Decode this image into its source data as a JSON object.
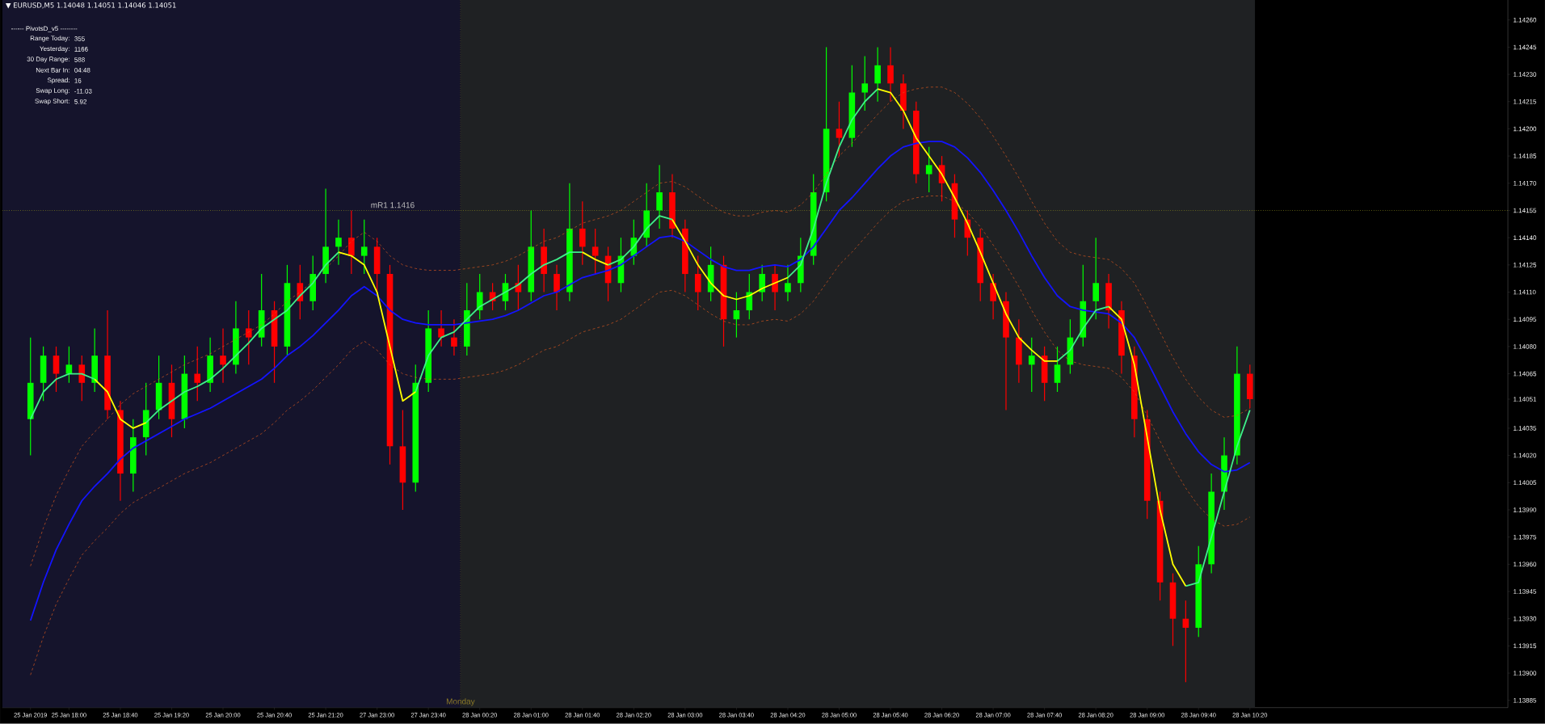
{
  "chart_data": {
    "type": "candlestick",
    "title": "▼ EURUSD,M5  1.14048 1.14051 1.14046 1.14051",
    "categories": [
      "25 Jan 2019",
      null,
      null,
      "25 Jan 18:00",
      null,
      null,
      null,
      "25 Jan 18:40",
      null,
      null,
      null,
      "25 Jan 19:20",
      null,
      null,
      null,
      "25 Jan 20:00",
      null,
      null,
      null,
      "25 Jan 20:40",
      null,
      null,
      null,
      "25 Jan 21:20",
      null,
      null,
      null,
      "27 Jan 23:00",
      null,
      null,
      null,
      "27 Jan 23:40",
      null,
      null,
      null,
      "28 Jan 00:20",
      null,
      null,
      null,
      "28 Jan 01:00",
      null,
      null,
      null,
      "28 Jan 01:40",
      null,
      null,
      null,
      "28 Jan 02:20",
      null,
      null,
      null,
      "28 Jan 03:00",
      null,
      null,
      null,
      "28 Jan 03:40",
      null,
      null,
      null,
      "28 Jan 04:20",
      null,
      null,
      null,
      "28 Jan 05:00",
      null,
      null,
      null,
      "28 Jan 05:40",
      null,
      null,
      null,
      "28 Jan 06:20",
      null,
      null,
      null,
      "28 Jan 07:00",
      null,
      null,
      null,
      "28 Jan 07:40",
      null,
      null,
      null,
      "28 Jan 08:20",
      null,
      null,
      null,
      "28 Jan 09:00",
      null,
      null,
      null,
      "28 Jan 09:40",
      null,
      null,
      null,
      "28 Jan 10:20"
    ],
    "ohlc": [
      [
        1.1404,
        1.14085,
        1.1402,
        1.1406
      ],
      [
        1.1406,
        1.1408,
        1.1405,
        1.14075
      ],
      [
        1.14075,
        1.1408,
        1.14055,
        1.14065
      ],
      [
        1.14065,
        1.1408,
        1.1406,
        1.1407
      ],
      [
        1.1407,
        1.14075,
        1.1405,
        1.1406
      ],
      [
        1.1406,
        1.1409,
        1.14055,
        1.14075
      ],
      [
        1.14075,
        1.141,
        1.1404,
        1.14045
      ],
      [
        1.14045,
        1.1405,
        1.13995,
        1.1401
      ],
      [
        1.1401,
        1.1404,
        1.14,
        1.1403
      ],
      [
        1.1403,
        1.1406,
        1.1402,
        1.14045
      ],
      [
        1.14045,
        1.14075,
        1.1404,
        1.1406
      ],
      [
        1.1406,
        1.1407,
        1.1403,
        1.1404
      ],
      [
        1.1404,
        1.14075,
        1.14035,
        1.14065
      ],
      [
        1.14065,
        1.1408,
        1.1405,
        1.1406
      ],
      [
        1.1406,
        1.14085,
        1.14055,
        1.14075
      ],
      [
        1.14075,
        1.1409,
        1.1406,
        1.1407
      ],
      [
        1.1407,
        1.14105,
        1.14065,
        1.1409
      ],
      [
        1.1409,
        1.141,
        1.1407,
        1.14085
      ],
      [
        1.14085,
        1.1412,
        1.1408,
        1.141
      ],
      [
        1.141,
        1.14105,
        1.1406,
        1.1408
      ],
      [
        1.1408,
        1.14125,
        1.14075,
        1.14115
      ],
      [
        1.14115,
        1.14125,
        1.14095,
        1.14105
      ],
      [
        1.14105,
        1.1413,
        1.141,
        1.1412
      ],
      [
        1.1412,
        1.14167,
        1.14115,
        1.14135
      ],
      [
        1.14135,
        1.1415,
        1.14125,
        1.1414
      ],
      [
        1.1414,
        1.14155,
        1.1412,
        1.1413
      ],
      [
        1.1413,
        1.1415,
        1.1412,
        1.14135
      ],
      [
        1.14135,
        1.1414,
        1.1411,
        1.1412
      ],
      [
        1.1412,
        1.14125,
        1.14015,
        1.14025
      ],
      [
        1.14025,
        1.14045,
        1.1399,
        1.14005
      ],
      [
        1.14005,
        1.1407,
        1.14,
        1.1406
      ],
      [
        1.1406,
        1.141,
        1.14055,
        1.1409
      ],
      [
        1.1409,
        1.141,
        1.1408,
        1.14085
      ],
      [
        1.14085,
        1.14095,
        1.14075,
        1.1408
      ],
      [
        1.1408,
        1.14115,
        1.14075,
        1.141
      ],
      [
        1.141,
        1.1412,
        1.14095,
        1.1411
      ],
      [
        1.1411,
        1.14115,
        1.141,
        1.14105
      ],
      [
        1.14105,
        1.1412,
        1.141,
        1.14115
      ],
      [
        1.14115,
        1.14125,
        1.141,
        1.1411
      ],
      [
        1.1411,
        1.14155,
        1.14105,
        1.14135
      ],
      [
        1.14135,
        1.14145,
        1.1411,
        1.1412
      ],
      [
        1.1412,
        1.14125,
        1.141,
        1.1411
      ],
      [
        1.1411,
        1.1417,
        1.14105,
        1.14145
      ],
      [
        1.14145,
        1.1416,
        1.14125,
        1.14135
      ],
      [
        1.14135,
        1.14145,
        1.1412,
        1.1413
      ],
      [
        1.1413,
        1.14135,
        1.14105,
        1.14115
      ],
      [
        1.14115,
        1.1414,
        1.1411,
        1.1413
      ],
      [
        1.1413,
        1.1415,
        1.14125,
        1.1414
      ],
      [
        1.1414,
        1.1417,
        1.14135,
        1.14155
      ],
      [
        1.14155,
        1.1418,
        1.14145,
        1.14165
      ],
      [
        1.14165,
        1.14175,
        1.1414,
        1.14145
      ],
      [
        1.14145,
        1.1415,
        1.1411,
        1.1412
      ],
      [
        1.1412,
        1.1413,
        1.141,
        1.1411
      ],
      [
        1.1411,
        1.14135,
        1.14105,
        1.14125
      ],
      [
        1.14125,
        1.1413,
        1.1408,
        1.14095
      ],
      [
        1.14095,
        1.1411,
        1.14085,
        1.141
      ],
      [
        1.141,
        1.1412,
        1.14095,
        1.1411
      ],
      [
        1.1411,
        1.14125,
        1.14105,
        1.1412
      ],
      [
        1.1412,
        1.14125,
        1.141,
        1.1411
      ],
      [
        1.1411,
        1.14125,
        1.14105,
        1.14115
      ],
      [
        1.14115,
        1.1414,
        1.1411,
        1.1413
      ],
      [
        1.1413,
        1.14175,
        1.14125,
        1.14165
      ],
      [
        1.14165,
        1.14245,
        1.1416,
        1.142
      ],
      [
        1.142,
        1.14215,
        1.14185,
        1.14195
      ],
      [
        1.14195,
        1.14235,
        1.1419,
        1.1422
      ],
      [
        1.1422,
        1.1424,
        1.1421,
        1.14225
      ],
      [
        1.14225,
        1.14245,
        1.14215,
        1.14235
      ],
      [
        1.14235,
        1.14245,
        1.14215,
        1.14225
      ],
      [
        1.14225,
        1.1423,
        1.142,
        1.1421
      ],
      [
        1.1421,
        1.14215,
        1.1417,
        1.14175
      ],
      [
        1.14175,
        1.1419,
        1.14165,
        1.1418
      ],
      [
        1.1418,
        1.14185,
        1.1416,
        1.1417
      ],
      [
        1.1417,
        1.14175,
        1.1414,
        1.1415
      ],
      [
        1.1415,
        1.14155,
        1.1413,
        1.1414
      ],
      [
        1.1414,
        1.14145,
        1.14105,
        1.14115
      ],
      [
        1.14115,
        1.1412,
        1.14095,
        1.14105
      ],
      [
        1.14105,
        1.1411,
        1.14045,
        1.14085
      ],
      [
        1.14085,
        1.14095,
        1.1406,
        1.1407
      ],
      [
        1.1407,
        1.14085,
        1.14055,
        1.14075
      ],
      [
        1.14075,
        1.1408,
        1.1405,
        1.1406
      ],
      [
        1.1406,
        1.1408,
        1.14055,
        1.1407
      ],
      [
        1.1407,
        1.14095,
        1.14065,
        1.14085
      ],
      [
        1.14085,
        1.14125,
        1.1408,
        1.14105
      ],
      [
        1.14105,
        1.1414,
        1.14095,
        1.14115
      ],
      [
        1.14115,
        1.1412,
        1.1409,
        1.141
      ],
      [
        1.141,
        1.14105,
        1.14065,
        1.14075
      ],
      [
        1.14075,
        1.1408,
        1.1403,
        1.1404
      ],
      [
        1.1404,
        1.14045,
        1.13985,
        1.13995
      ],
      [
        1.13995,
        1.14,
        1.1394,
        1.1395
      ],
      [
        1.1395,
        1.13955,
        1.13915,
        1.1393
      ],
      [
        1.1393,
        1.1394,
        1.13895,
        1.13925
      ],
      [
        1.13925,
        1.1397,
        1.1392,
        1.1396
      ],
      [
        1.1396,
        1.1401,
        1.13955,
        1.14
      ],
      [
        1.14,
        1.1403,
        1.1399,
        1.1402
      ],
      [
        1.1402,
        1.1408,
        1.14015,
        1.14065
      ],
      [
        1.14065,
        1.1407,
        1.14046,
        1.14051
      ]
    ],
    "colors": [
      "#00ff00",
      "#00ff00",
      "#ff0000",
      "#00ff00",
      "#ff0000",
      "#00ff00",
      "#ff0000",
      "#ff0000",
      "#00ff00",
      "#00ff00",
      "#00ff00",
      "#ff0000",
      "#00ff00",
      "#ff0000",
      "#00ff00",
      "#ff0000",
      "#00ff00",
      "#ff0000",
      "#00ff00",
      "#ff0000",
      "#00ff00",
      "#ff0000",
      "#00ff00",
      "#00ff00",
      "#00ff00",
      "#ff0000",
      "#00ff00",
      "#ff0000",
      "#ff0000",
      "#ff0000",
      "#00ff00",
      "#00ff00",
      "#ff0000",
      "#ff0000",
      "#00ff00",
      "#00ff00",
      "#ff0000",
      "#00ff00",
      "#ff0000",
      "#00ff00",
      "#ff0000",
      "#ff0000",
      "#00ff00",
      "#ff0000",
      "#ff0000",
      "#ff0000",
      "#00ff00",
      "#00ff00",
      "#00ff00",
      "#00ff00",
      "#ff0000",
      "#ff0000",
      "#ff0000",
      "#00ff00",
      "#ff0000",
      "#00ff00",
      "#00ff00",
      "#00ff00",
      "#ff0000",
      "#00ff00",
      "#00ff00",
      "#00ff00",
      "#00ff00",
      "#ff0000",
      "#00ff00",
      "#00ff00",
      "#00ff00",
      "#ff0000",
      "#ff0000",
      "#ff0000",
      "#00ff00",
      "#ff0000",
      "#ff0000",
      "#ff0000",
      "#ff0000",
      "#ff0000",
      "#ff0000",
      "#ff0000",
      "#00ff00",
      "#ff0000",
      "#00ff00",
      "#00ff00",
      "#00ff00",
      "#00ff00",
      "#ff0000",
      "#ff0000",
      "#ff0000",
      "#ff0000",
      "#ff0000",
      "#ff0000",
      "#ff0000",
      "#00ff00",
      "#00ff00",
      "#00ff00",
      "#00ff00",
      "#ff0000"
    ],
    "series": [
      {
        "type": "line",
        "color": "#d2551e",
        "line_style": "dashed",
        "values": [
          1.13959,
          1.1398,
          1.13998,
          1.14012,
          1.14025,
          1.14033,
          1.1404,
          1.14048,
          1.14054,
          1.14058,
          1.14062,
          1.14066,
          1.1407,
          1.14073,
          1.14076,
          1.1408,
          1.14084,
          1.14088,
          1.14092,
          1.14098,
          1.14105,
          1.1411,
          1.14116,
          1.14123,
          1.1413,
          1.14138,
          1.14143,
          1.14138,
          1.1413,
          1.14125,
          1.14123,
          1.14122,
          1.14122,
          1.14122,
          1.14123,
          1.14124,
          1.14125,
          1.14127,
          1.1413,
          1.14134,
          1.14138,
          1.1414,
          1.14144,
          1.14148,
          1.1415,
          1.14152,
          1.14155,
          1.1416,
          1.14165,
          1.1417,
          1.14171,
          1.14168,
          1.14163,
          1.14158,
          1.14154,
          1.14152,
          1.14152,
          1.14154,
          1.14155,
          1.14154,
          1.14158,
          1.14165,
          1.14175,
          1.14185,
          1.14192,
          1.142,
          1.14208,
          1.14215,
          1.1422,
          1.14222,
          1.14223,
          1.14223,
          1.1422,
          1.14214,
          1.14206,
          1.14196,
          1.14185,
          1.14173,
          1.1416,
          1.14148,
          1.14138,
          1.14132,
          1.1413,
          1.14129,
          1.14128,
          1.14123,
          1.14115,
          1.14102,
          1.14088,
          1.14074,
          1.14062,
          1.14052,
          1.14045,
          1.14041,
          1.14042,
          1.14046
        ]
      },
      {
        "type": "line",
        "color": "#d2551e",
        "line_style": "dashed",
        "values": [
          1.13899,
          1.1392,
          1.13938,
          1.13952,
          1.13965,
          1.13973,
          1.1398,
          1.13988,
          1.13994,
          1.13998,
          1.14002,
          1.14006,
          1.1401,
          1.14013,
          1.14016,
          1.1402,
          1.14024,
          1.14028,
          1.14032,
          1.14038,
          1.14045,
          1.1405,
          1.14056,
          1.14063,
          1.1407,
          1.14078,
          1.14083,
          1.14078,
          1.1407,
          1.14065,
          1.14063,
          1.14062,
          1.14062,
          1.14062,
          1.14063,
          1.14064,
          1.14065,
          1.14067,
          1.1407,
          1.14074,
          1.14078,
          1.1408,
          1.14084,
          1.14088,
          1.1409,
          1.14092,
          1.14095,
          1.141,
          1.14105,
          1.1411,
          1.14111,
          1.14108,
          1.14103,
          1.14098,
          1.14094,
          1.14092,
          1.14092,
          1.14094,
          1.14095,
          1.14094,
          1.14098,
          1.14105,
          1.14115,
          1.14125,
          1.14132,
          1.1414,
          1.14148,
          1.14155,
          1.1416,
          1.14162,
          1.14163,
          1.14163,
          1.1416,
          1.14154,
          1.14146,
          1.14136,
          1.14125,
          1.14113,
          1.141,
          1.14088,
          1.14078,
          1.14072,
          1.1407,
          1.14069,
          1.14068,
          1.14063,
          1.14055,
          1.14042,
          1.14028,
          1.14014,
          1.14002,
          1.13992,
          1.13985,
          1.13981,
          1.13982,
          1.13986
        ]
      },
      {
        "type": "line",
        "color": "#1414ff",
        "line_style": "solid",
        "values": [
          1.13929,
          1.1395,
          1.13968,
          1.13982,
          1.13995,
          1.14003,
          1.1401,
          1.14018,
          1.14024,
          1.14028,
          1.14032,
          1.14036,
          1.1404,
          1.14043,
          1.14046,
          1.1405,
          1.14054,
          1.14058,
          1.14062,
          1.14068,
          1.14075,
          1.1408,
          1.14086,
          1.14093,
          1.141,
          1.14108,
          1.14113,
          1.14108,
          1.141,
          1.14095,
          1.14093,
          1.14092,
          1.14092,
          1.14092,
          1.14093,
          1.14094,
          1.14095,
          1.14097,
          1.141,
          1.14104,
          1.14108,
          1.1411,
          1.14114,
          1.14118,
          1.1412,
          1.14122,
          1.14125,
          1.1413,
          1.14135,
          1.1414,
          1.14141,
          1.14138,
          1.14133,
          1.14128,
          1.14124,
          1.14122,
          1.14122,
          1.14124,
          1.14125,
          1.14124,
          1.14128,
          1.14135,
          1.14145,
          1.14155,
          1.14162,
          1.1417,
          1.14178,
          1.14185,
          1.1419,
          1.14192,
          1.14193,
          1.14193,
          1.1419,
          1.14184,
          1.14176,
          1.14166,
          1.14155,
          1.14143,
          1.1413,
          1.14118,
          1.14108,
          1.14102,
          1.141,
          1.14099,
          1.14098,
          1.14093,
          1.14085,
          1.14072,
          1.14058,
          1.14044,
          1.14032,
          1.14022,
          1.14015,
          1.14011,
          1.14012,
          1.14016
        ]
      },
      {
        "type": "line",
        "color": "#3ef08a",
        "line_style": "solid",
        "values": [
          1.1404,
          1.14055,
          1.14062,
          1.14065,
          1.14065,
          1.14062,
          null,
          null,
          null,
          1.14038,
          1.14045,
          1.1405,
          1.14055,
          1.14058,
          1.14062,
          1.14068,
          1.14075,
          1.14082,
          1.1409,
          1.14095,
          1.141,
          1.14108,
          1.14115,
          1.14125,
          1.14132,
          null,
          null,
          null,
          null,
          null,
          1.14055,
          1.14075,
          1.14085,
          1.14088,
          1.14095,
          1.14102,
          1.14106,
          1.1411,
          1.14114,
          1.1412,
          1.14125,
          1.14128,
          1.14132,
          1.14132,
          null,
          1.14125,
          1.14128,
          1.14135,
          1.14145,
          1.14152,
          1.1415,
          null,
          null,
          null,
          null,
          null,
          null,
          null,
          null,
          1.14118,
          1.14125,
          1.14145,
          1.1417,
          1.1419,
          1.14205,
          1.14215,
          1.14222,
          null,
          null,
          null,
          null,
          null,
          null,
          null,
          null,
          null,
          null,
          null,
          null,
          null,
          1.14072,
          1.14078,
          1.1409,
          1.141,
          1.14102,
          null,
          null,
          null,
          null,
          null,
          1.13948,
          1.1395,
          1.13975,
          1.14,
          1.14025,
          1.14045
        ]
      },
      {
        "type": "line",
        "color": "#ffff00",
        "line_style": "solid",
        "values": [
          null,
          null,
          null,
          null,
          null,
          1.14062,
          1.14055,
          1.1404,
          1.14035,
          1.14038,
          null,
          null,
          null,
          null,
          null,
          null,
          null,
          null,
          null,
          null,
          null,
          null,
          null,
          null,
          1.14132,
          1.1413,
          1.14125,
          1.1411,
          1.1408,
          1.1405,
          1.14055,
          null,
          null,
          null,
          null,
          null,
          null,
          null,
          null,
          null,
          null,
          null,
          null,
          1.14132,
          1.14128,
          1.14125,
          null,
          null,
          null,
          null,
          1.1415,
          1.14138,
          1.14125,
          1.14115,
          1.14108,
          1.14106,
          1.14108,
          1.14112,
          1.14115,
          1.14118,
          null,
          null,
          null,
          null,
          null,
          null,
          1.14222,
          1.1422,
          1.1421,
          1.14195,
          1.14185,
          1.14175,
          1.14162,
          1.14148,
          1.14132,
          1.14115,
          1.14098,
          1.14085,
          1.14078,
          1.14072,
          1.14072,
          null,
          null,
          null,
          1.14102,
          1.14095,
          1.1407,
          1.1403,
          1.1399,
          1.1396,
          1.13948,
          null,
          null,
          null,
          null,
          null
        ]
      }
    ],
    "ylim": [
      1.13881,
      1.14271
    ],
    "yticks": [
      {
        "value": 1.13885,
        "label": "1.13885"
      },
      {
        "value": 1.139,
        "label": "1.13900"
      },
      {
        "value": 1.13915,
        "label": "1.13915"
      },
      {
        "value": 1.1393,
        "label": "1.13930"
      },
      {
        "value": 1.13945,
        "label": "1.13945"
      },
      {
        "value": 1.1396,
        "label": "1.13960"
      },
      {
        "value": 1.13975,
        "label": "1.13975"
      },
      {
        "value": 1.1399,
        "label": "1.13990"
      },
      {
        "value": 1.14005,
        "label": "1.14005"
      },
      {
        "value": 1.1402,
        "label": "1.14020"
      },
      {
        "value": 1.14035,
        "label": "1.14035"
      },
      {
        "value": 1.14051,
        "label": "1.14051"
      },
      {
        "value": 1.14065,
        "label": "1.14065"
      },
      {
        "value": 1.1408,
        "label": "1.14080"
      },
      {
        "value": 1.14095,
        "label": "1.14095"
      },
      {
        "value": 1.1411,
        "label": "1.14110"
      },
      {
        "value": 1.14125,
        "label": "1.14125"
      },
      {
        "value": 1.1414,
        "label": "1.14140"
      },
      {
        "value": 1.14155,
        "label": "1.14155"
      },
      {
        "value": 1.1417,
        "label": "1.14170"
      },
      {
        "value": 1.14185,
        "label": "1.14185"
      },
      {
        "value": 1.142,
        "label": "1.14200"
      },
      {
        "value": 1.14215,
        "label": "1.14215"
      },
      {
        "value": 1.1423,
        "label": "1.14230"
      },
      {
        "value": 1.14245,
        "label": "1.14245"
      },
      {
        "value": 1.1426,
        "label": "1.14260"
      }
    ],
    "ref_lines": [
      {
        "axis": "y",
        "value": 1.14155,
        "label": "mR1  1.1416",
        "color": "#8c8c1e",
        "line_style": "dotted"
      }
    ],
    "annotations": [
      "Monday",
      "------ PivotsD_v5 --------",
      "Range  Today:",
      "355",
      "Yesterday:",
      "1166",
      "30 Day Range:",
      "588",
      "Next Bar In:",
      "04:48",
      "Spread:",
      "16",
      "Swap  Long:",
      "-11.03",
      "Swap  Short:",
      "5.92"
    ]
  }
}
